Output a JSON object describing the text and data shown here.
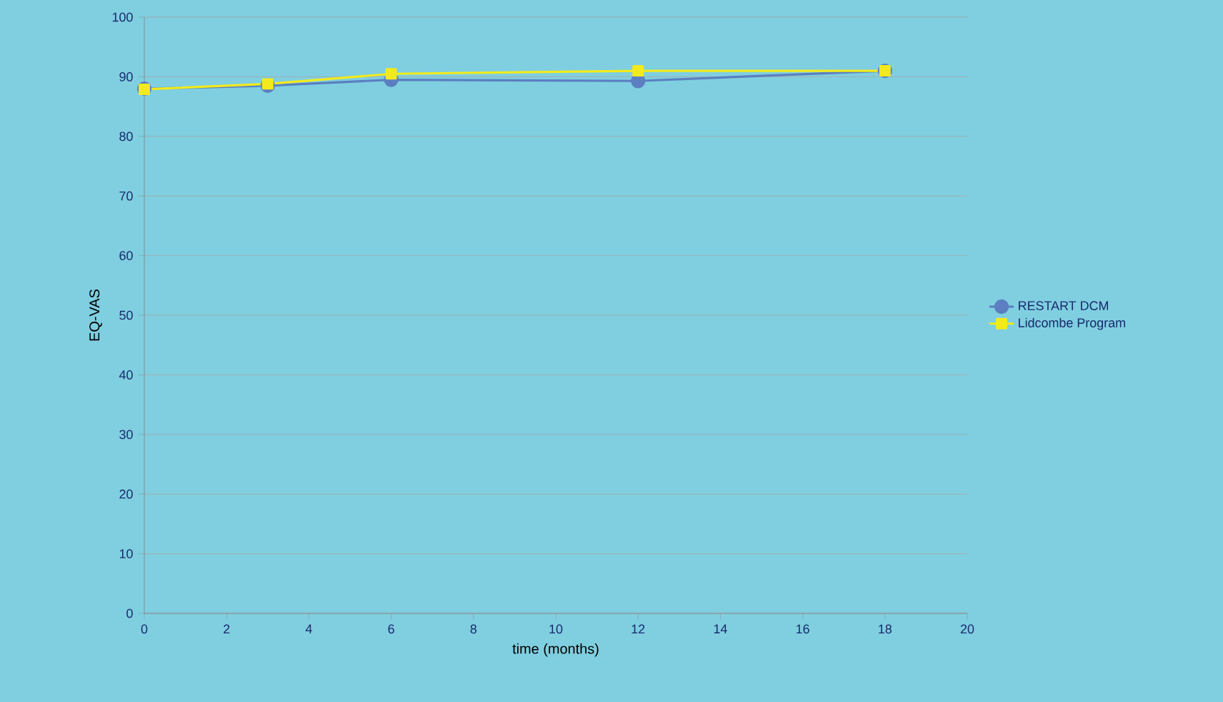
{
  "chart_data": {
    "type": "line",
    "xlabel": "time (months)",
    "ylabel": "EQ-VAS",
    "xlim": [
      0,
      20
    ],
    "xticks": [
      0,
      2,
      4,
      6,
      8,
      10,
      12,
      14,
      16,
      18,
      20
    ],
    "ylim": [
      0,
      100
    ],
    "yticks": [
      0,
      10,
      20,
      30,
      40,
      50,
      60,
      70,
      80,
      90,
      100
    ],
    "grid": "y",
    "legend": "right",
    "series": [
      {
        "name": "RESTART DCM",
        "color": "#5b7fc0",
        "x": [
          0,
          3,
          6,
          12,
          18
        ],
        "values": [
          88,
          88.5,
          89.5,
          89.3,
          91
        ],
        "marker": "circle"
      },
      {
        "name": "Lidcombe Program",
        "color": "#f2ea1c",
        "x": [
          0,
          3,
          6,
          12,
          18
        ],
        "values": [
          87.9,
          88.8,
          90.5,
          91,
          91
        ],
        "marker": "square"
      }
    ]
  }
}
